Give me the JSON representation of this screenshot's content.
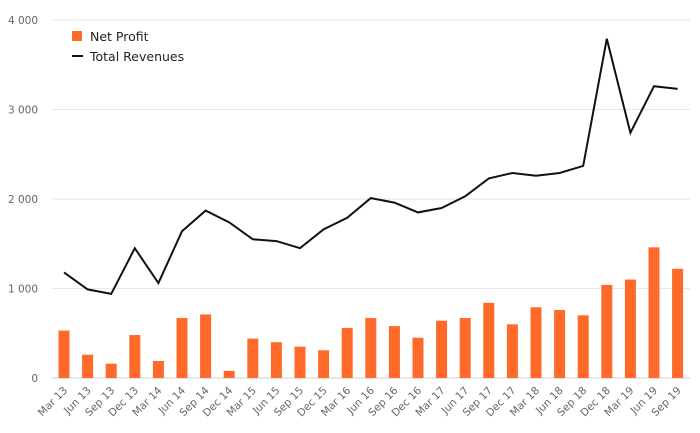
{
  "chart_data": {
    "type": "bar",
    "title": "",
    "xlabel": "",
    "ylabel": "",
    "categories": [
      "Mar 13",
      "Jun 13",
      "Sep 13",
      "Dec 13",
      "Mar 14",
      "Jun 14",
      "Sep 14",
      "Dec 14",
      "Mar 15",
      "Jun 15",
      "Sep 15",
      "Dec 15",
      "Mar 16",
      "Jun 16",
      "Sep 16",
      "Dec 16",
      "Mar 17",
      "Jun 17",
      "Sep 17",
      "Dec 17",
      "Mar 18",
      "Jun 18",
      "Sep 18",
      "Dec 18",
      "Mar 19",
      "Jun 19",
      "Sep 19"
    ],
    "series": [
      {
        "name": "Net Profit",
        "type": "bar",
        "color": "#ff6a2a",
        "values": [
          530,
          260,
          160,
          480,
          190,
          670,
          710,
          80,
          440,
          400,
          350,
          310,
          560,
          670,
          580,
          450,
          640,
          670,
          840,
          600,
          790,
          760,
          700,
          1040,
          1100,
          1460,
          1220
        ]
      },
      {
        "name": "Total Revenues",
        "type": "line",
        "color": "#111111",
        "values": [
          1180,
          990,
          940,
          1450,
          1060,
          1640,
          1870,
          1740,
          1550,
          1530,
          1450,
          1660,
          1790,
          2010,
          1960,
          1850,
          1900,
          2030,
          2230,
          2290,
          2260,
          2290,
          2370,
          3790,
          2740,
          3260,
          3230
        ]
      }
    ],
    "ylim": [
      0,
      4000
    ],
    "yticks": [
      0,
      1000,
      2000,
      3000,
      4000
    ],
    "ytick_labels": [
      "0",
      "1 000",
      "2 000",
      "3 000",
      "4 000"
    ],
    "grid": true,
    "legend_position": "top-left"
  }
}
